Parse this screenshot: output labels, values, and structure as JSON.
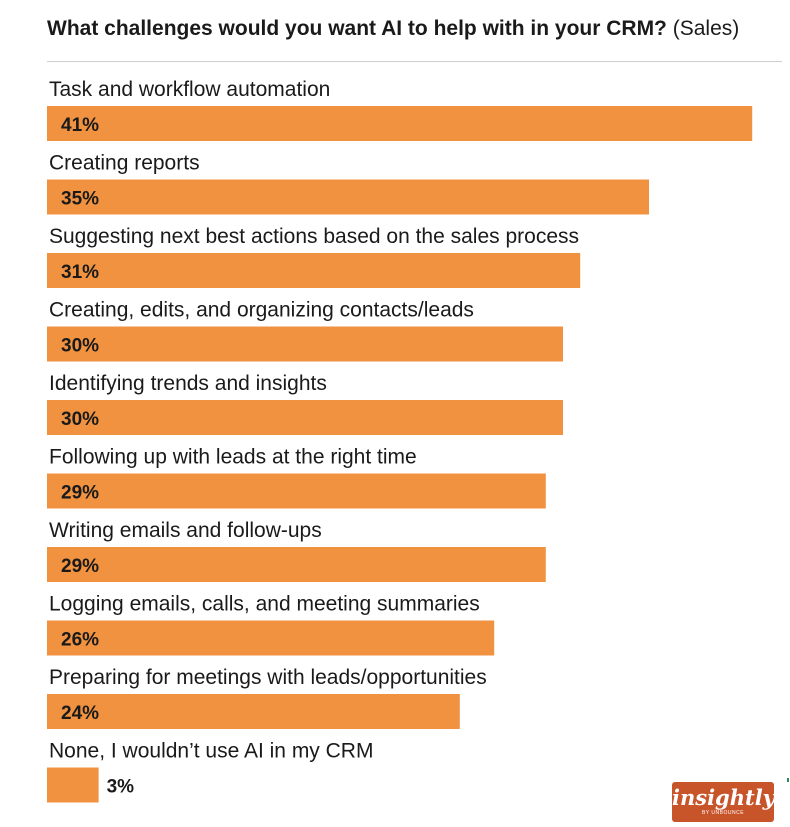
{
  "title": {
    "main": "What challenges would you want AI to help with in your CRM?",
    "sub": "(Sales)"
  },
  "brand": {
    "name": "insightly",
    "byline": "BY UNBOUNCE"
  },
  "colors": {
    "bar": "#f0923f",
    "text": "#1a1a1a",
    "logo_bg": "#c8542a"
  },
  "chart_data": {
    "type": "bar",
    "orientation": "horizontal",
    "categories": [
      "Task and workflow automation",
      "Creating reports",
      "Suggesting next best actions based on the sales process",
      "Creating, edits, and organizing contacts/leads",
      "Identifying trends and insights",
      "Following up with leads at the right time",
      "Writing emails and follow-ups",
      "Logging emails, calls, and meeting summaries",
      "Preparing for meetings with leads/opportunities",
      "None, I wouldn’t use AI in my CRM"
    ],
    "values": [
      41,
      35,
      31,
      30,
      30,
      29,
      29,
      26,
      24,
      3
    ],
    "value_labels": [
      "41%",
      "35%",
      "31%",
      "30%",
      "30%",
      "29%",
      "29%",
      "26%",
      "24%",
      "3%"
    ],
    "unit": "%",
    "grid": false,
    "legend": "none"
  }
}
